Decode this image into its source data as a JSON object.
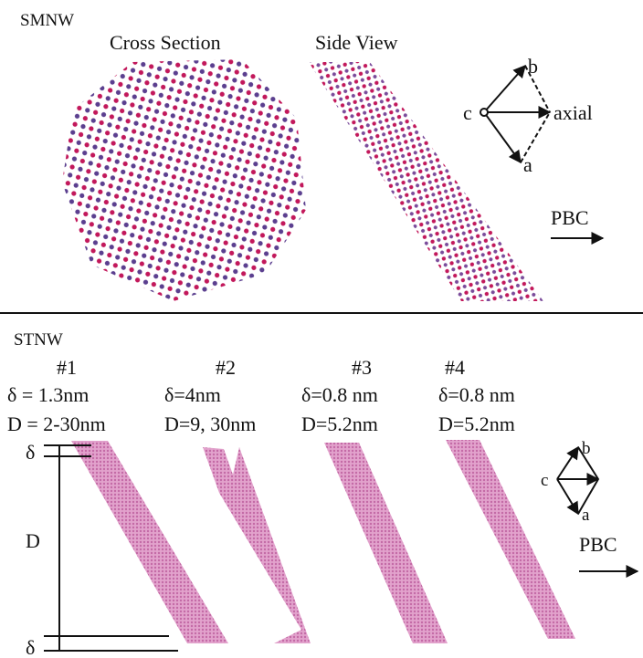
{
  "top": {
    "label": "SMNW",
    "cross_section": "Cross Section",
    "side_view": "Side View",
    "axes": {
      "b": "b",
      "c": "c",
      "axial": "axial",
      "a": "a"
    },
    "pbc": "PBC"
  },
  "bottom": {
    "label": "STNW",
    "wires": [
      {
        "id": "#1",
        "delta": "δ = 1.3nm",
        "diameter": "D = 2-30nm"
      },
      {
        "id": "#2",
        "delta": "δ=4nm",
        "diameter": "D=9, 30nm"
      },
      {
        "id": "#3",
        "delta": "δ=0.8 nm",
        "diameter": "D=5.2nm"
      },
      {
        "id": "#4",
        "delta": "δ=0.8 nm",
        "diameter": "D=5.2nm"
      }
    ],
    "scale": {
      "delta_top": "δ",
      "d": "D",
      "delta_bottom": "δ"
    },
    "axes": {
      "b": "b",
      "c": "c",
      "a": "a"
    },
    "pbc": "PBC"
  }
}
